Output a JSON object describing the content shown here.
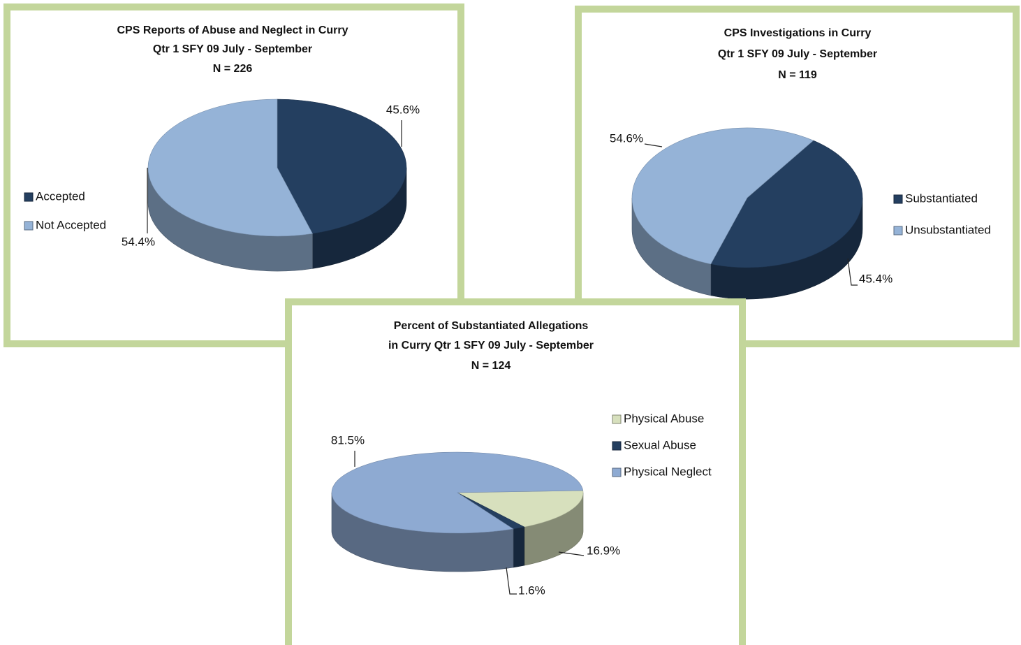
{
  "chart_data": [
    {
      "type": "pie3d",
      "title": [
        "CPS Reports of Abuse and Neglect in Curry",
        "Qtr 1 SFY 09 July - September",
        "N = 226"
      ],
      "categories": [
        "Accepted",
        "Not Accepted"
      ],
      "values": [
        45.6,
        54.4
      ],
      "value_labels": [
        "45.6%",
        "54.4%"
      ],
      "colors": [
        "#243f60",
        "#95b3d7"
      ]
    },
    {
      "type": "pie3d",
      "title": [
        "CPS Investigations in Curry",
        "Qtr 1 SFY 09 July - September",
        "N = 119"
      ],
      "categories": [
        "Substantiated",
        "Unsubstantiated"
      ],
      "values": [
        45.4,
        54.6
      ],
      "value_labels": [
        "45.4%",
        "54.6%"
      ],
      "colors": [
        "#243f60",
        "#95b3d7"
      ]
    },
    {
      "type": "pie3d",
      "title": [
        "Percent of Substantiated Allegations",
        "in Curry Qtr 1 SFY 09 July - September",
        "N = 124"
      ],
      "categories": [
        "Physical Abuse",
        "Sexual Abuse",
        "Physical Neglect"
      ],
      "values": [
        16.9,
        1.6,
        81.5
      ],
      "value_labels": [
        "16.9%",
        "1.6%",
        "81.5%"
      ],
      "colors": [
        "#d7e0bd",
        "#243f60",
        "#8eaad2"
      ]
    }
  ]
}
